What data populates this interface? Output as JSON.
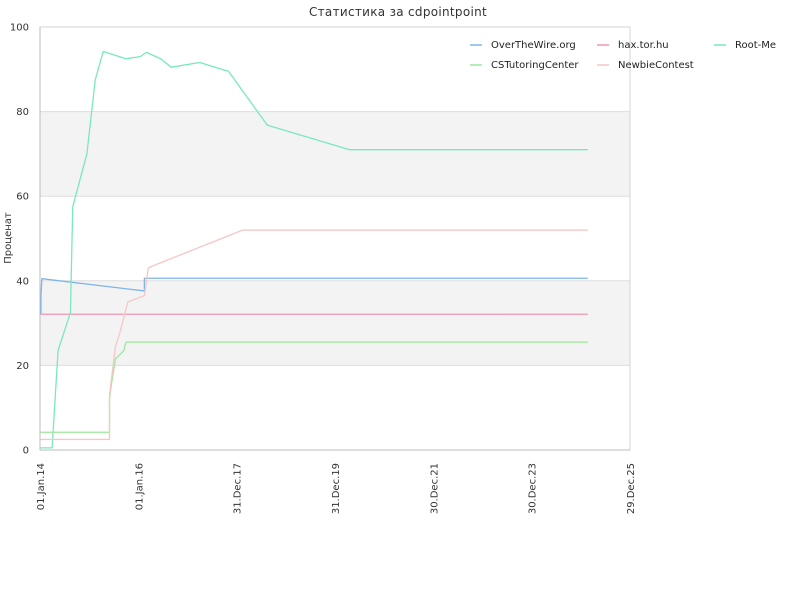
{
  "chart_data": {
    "type": "line",
    "title": "Статистика за cdpointpoint",
    "xlabel": "",
    "ylabel": "Проценат",
    "ylim": [
      0,
      100
    ],
    "y_ticks": [
      0,
      20,
      40,
      60,
      80,
      100
    ],
    "xlim": [
      "2014-01-01",
      "2025-12-29"
    ],
    "x_ticks": [
      "2014-01-01",
      "2016-01-01",
      "2017-12-31",
      "2019-12-31",
      "2021-12-30",
      "2023-12-30",
      "2025-12-29"
    ],
    "x_tick_labels": [
      "01.Jan.14",
      "01.Jan.16",
      "31.Dec.17",
      "31.Dec.19",
      "30.Dec.21",
      "30.Dec.23",
      "29.Dec.25"
    ],
    "grid": true,
    "alternating_bands": true,
    "legend_position": "top-right",
    "series": [
      {
        "name": "OverTheWire.org",
        "color": "#7eb5e8",
        "points": [
          [
            "2014-01-08",
            32.3
          ],
          [
            "2014-01-08",
            36.5
          ],
          [
            "2014-01-15",
            40.5
          ],
          [
            "2016-02-15",
            37.6
          ],
          [
            "2016-02-15",
            40.6
          ],
          [
            "2025-02-15",
            40.6
          ]
        ]
      },
      {
        "name": "hax.tor.hu",
        "color": "#f096b4",
        "points": [
          [
            "2014-01-08",
            32.1
          ],
          [
            "2025-02-15",
            32.1
          ]
        ]
      },
      {
        "name": "Root-Me",
        "color": "#79e8bf",
        "points": [
          [
            "2014-01-08",
            0.5
          ],
          [
            "2014-04-01",
            0.5
          ],
          [
            "2014-05-15",
            23.5
          ],
          [
            "2014-08-15",
            32.5
          ],
          [
            "2014-09-01",
            57.5
          ],
          [
            "2014-12-15",
            70.0
          ],
          [
            "2015-02-15",
            87.5
          ],
          [
            "2015-04-15",
            94.2
          ],
          [
            "2015-10-01",
            92.5
          ],
          [
            "2016-01-15",
            93.0
          ],
          [
            "2016-03-01",
            94.0
          ],
          [
            "2016-06-15",
            92.5
          ],
          [
            "2016-09-01",
            90.5
          ],
          [
            "2017-04-01",
            91.6
          ],
          [
            "2017-11-01",
            89.5
          ],
          [
            "2018-08-15",
            76.8
          ],
          [
            "2020-04-15",
            71.0
          ],
          [
            "2025-02-15",
            71.0
          ]
        ]
      },
      {
        "name": "CSTutoringCenter",
        "color": "#9ee79a",
        "points": [
          [
            "2014-01-08",
            4.2
          ],
          [
            "2015-06-01",
            4.2
          ],
          [
            "2015-06-01",
            12.0
          ],
          [
            "2015-06-15",
            15.5
          ],
          [
            "2015-07-15",
            21.5
          ],
          [
            "2015-09-15",
            23.5
          ],
          [
            "2015-10-01",
            25.5
          ],
          [
            "2025-02-15",
            25.5
          ]
        ]
      },
      {
        "name": "NewbieContest",
        "color": "#f7c6c6",
        "points": [
          [
            "2014-01-08",
            2.5
          ],
          [
            "2015-06-01",
            2.5
          ],
          [
            "2015-06-01",
            13.0
          ],
          [
            "2015-07-15",
            24.5
          ],
          [
            "2015-08-15",
            27.5
          ],
          [
            "2015-10-15",
            35.0
          ],
          [
            "2016-02-15",
            36.5
          ],
          [
            "2016-03-15",
            43.0
          ],
          [
            "2016-04-15",
            43.5
          ],
          [
            "2018-02-15",
            52.0
          ],
          [
            "2025-02-15",
            52.0
          ]
        ]
      }
    ]
  }
}
